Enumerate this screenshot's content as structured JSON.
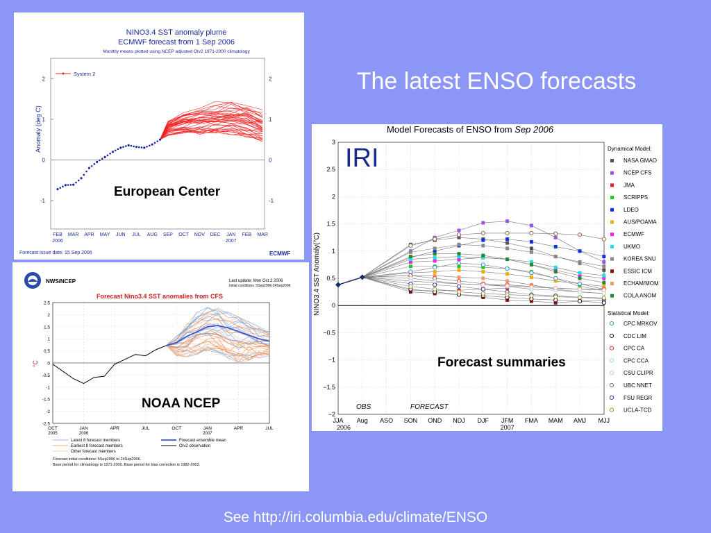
{
  "slide": {
    "title": "The latest ENSO forecasts",
    "footer": "See http://iri.columbia.edu/climate/ENSO",
    "callouts": {
      "ecmwf": "European Center",
      "ncep": "NOAA NCEP",
      "iri": "Forecast summaries"
    }
  },
  "chart_data": [
    {
      "type": "line",
      "title": "NINO3.4 SST anomaly plume",
      "subtitle": "ECMWF forecast from  1 Sep 2006",
      "note": "Monthly means plotted using NCEP adjusted OIv2 1971-2000 climatology",
      "ylabel": "Anomaly (deg C)",
      "ylim": [
        -1.7,
        2.5
      ],
      "yticks": [
        -1,
        0,
        1,
        2
      ],
      "months": [
        "FEB",
        "MAR",
        "APR",
        "MAY",
        "JUN",
        "JUL",
        "AUG",
        "SEP",
        "OCT",
        "NOV",
        "DEC",
        "JAN",
        "FEB",
        "MAR"
      ],
      "year_labels": [
        "2006",
        "2007"
      ],
      "legend": "System 2",
      "issue_date": "Forecast issue date: 15 Sep 2006",
      "logo": "ECMWF",
      "observed": {
        "x": [
          0,
          0.5,
          1,
          1.5,
          2,
          2.5,
          3,
          3.5,
          4,
          4.5,
          5,
          5.5,
          6,
          6.5
        ],
        "y": [
          -0.72,
          -0.62,
          -0.61,
          -0.45,
          -0.2,
          -0.05,
          0.07,
          0.2,
          0.3,
          0.36,
          0.32,
          0.3,
          0.38,
          0.5
        ]
      },
      "ensemble_mean": {
        "x": [
          6.5,
          7,
          8,
          9,
          10,
          11,
          12,
          13
        ],
        "y": [
          0.5,
          0.8,
          0.95,
          1.05,
          1.12,
          1.18,
          1.1,
          0.97
        ]
      },
      "spread_low": {
        "y": [
          0.5,
          0.6,
          0.65,
          0.62,
          0.6,
          0.62,
          0.55,
          0.45
        ]
      },
      "spread_high": {
        "y": [
          0.5,
          1.05,
          1.3,
          1.42,
          1.5,
          1.55,
          1.5,
          1.3
        ]
      },
      "members": 40
    },
    {
      "type": "line",
      "agency": "NWS/NCEP",
      "update": "Last update: Mon Oct  2 2006",
      "initial": "Initial conditions: 5Sep2006-24Sep2006",
      "title": "Forecast  Nino3.4 SST anomalies from CFS",
      "ylabel": "°C",
      "ylim": [
        -2.5,
        2.5
      ],
      "yticks": [
        -2.5,
        -2,
        -1.5,
        -1,
        -0.5,
        0,
        0.5,
        1,
        1.5,
        2,
        2.5
      ],
      "xticks": [
        {
          "x": 0,
          "label": "OCT",
          "year": "2005"
        },
        {
          "x": 3,
          "label": "JAN",
          "year": "2006"
        },
        {
          "x": 6,
          "label": "APR",
          "year": ""
        },
        {
          "x": 9,
          "label": "JUL",
          "year": ""
        },
        {
          "x": 12,
          "label": "OCT",
          "year": ""
        },
        {
          "x": 15,
          "label": "JAN",
          "year": "2007"
        },
        {
          "x": 18,
          "label": "APR",
          "year": ""
        },
        {
          "x": 21,
          "label": "JUL",
          "year": ""
        }
      ],
      "observed": {
        "name": "OIv2 observation",
        "x": [
          0,
          1,
          2,
          3,
          4,
          5,
          6,
          7,
          8,
          9,
          10,
          11
        ],
        "y": [
          -0.05,
          -0.35,
          -0.65,
          -0.85,
          -0.6,
          -0.55,
          -0.05,
          0.15,
          0.35,
          0.3,
          0.55,
          0.72
        ]
      },
      "ensemble_mean": {
        "name": "Forecast ensemble mean",
        "x": [
          11,
          12,
          13,
          14,
          15,
          16,
          17,
          18,
          19,
          20,
          21
        ],
        "y": [
          0.72,
          0.85,
          1.1,
          1.3,
          1.5,
          1.55,
          1.45,
          1.3,
          1.15,
          1.0,
          0.9
        ]
      },
      "spread_low": {
        "y": [
          0.72,
          0.3,
          0.25,
          0.35,
          0.5,
          0.4,
          0.15,
          0.0,
          0.1,
          0.2,
          0.3
        ]
      },
      "spread_high": {
        "y": [
          0.72,
          1.1,
          1.6,
          2.1,
          2.3,
          2.3,
          2.1,
          1.9,
          1.7,
          1.5,
          1.3
        ]
      },
      "legend": [
        "Latest 8 forecast members",
        "Forecast ensemble mean",
        "Earliest 8 forecast members",
        "OIv2 observation",
        "Other forecast members"
      ],
      "notes": [
        "Forecast initial conditions: 5Sep2006 to 24Sep2006.",
        "Base period for climatology is 1971-2000. Base period for bias correction is 1982-2003."
      ]
    },
    {
      "type": "line",
      "title": "Model Forecasts of ENSO from",
      "title_italic": "Sep 2006",
      "logo": "IRI",
      "ylabel": "NINO3.4 SST Anomaly(°C)",
      "ylim": [
        -2,
        3
      ],
      "yticks": [
        "3",
        "2.5",
        "2",
        "1.5",
        "1",
        "0.5",
        "0",
        "−0.5",
        "−1",
        "−1.5",
        "−2"
      ],
      "ytick_values": [
        3,
        2.5,
        2,
        1.5,
        1,
        0.5,
        0,
        -0.5,
        -1,
        -1.5,
        -2
      ],
      "seasons": [
        "JJA",
        "Aug",
        "ASO",
        "SON",
        "OND",
        "NDJ",
        "DJF",
        "JFM",
        "FMA",
        "MAM",
        "AMJ",
        "MJJ"
      ],
      "year_labels": [
        "2006",
        "2007"
      ],
      "obs_label": "OBS",
      "forecast_label": "FORECAST",
      "observed": {
        "x": [
          0,
          1
        ],
        "y": [
          0.38,
          0.52
        ]
      },
      "dynamical_heading": "Dynamical Model:",
      "statistical_heading": "Statistical Model:",
      "dynamical": [
        {
          "name": "NASA GMAO",
          "color": "#555555",
          "values": [
            1.12,
            1.2,
            1.25,
            1.22,
            1.15,
            1.05,
            0.9,
            0.78,
            0.65
          ]
        },
        {
          "name": "NCEP CFS",
          "color": "#9955dd",
          "values": [
            1.0,
            1.25,
            1.38,
            1.52,
            1.55,
            1.47,
            1.25,
            1.0,
            0.8
          ]
        },
        {
          "name": "JMA",
          "color": "#dd2222",
          "values": [
            0.28,
            0.27,
            0.28,
            0.3,
            0.32,
            null,
            null,
            null,
            null
          ]
        },
        {
          "name": "SCRIPPS",
          "color": "#22cc22",
          "values": [
            0.72,
            0.72,
            0.72,
            0.7,
            0.68,
            0.62,
            0.5,
            0.35,
            0.28
          ]
        },
        {
          "name": "LDEO",
          "color": "#1133dd",
          "values": [
            0.88,
            1.0,
            1.1,
            1.2,
            1.22,
            1.17,
            1.08,
            1.0,
            0.9
          ]
        },
        {
          "name": "AUS/POAMA",
          "color": "#eeaa11",
          "values": [
            0.6,
            0.62,
            0.65,
            0.62,
            0.58,
            0.52,
            0.45,
            0.4,
            0.35
          ]
        },
        {
          "name": "ECMWF",
          "color": "#ee22ee",
          "values": [
            0.8,
            0.82,
            0.85,
            0.88,
            0.85,
            0.75,
            0.65,
            0.55,
            0.5
          ]
        },
        {
          "name": "UKMO",
          "color": "#22dddd",
          "values": [
            0.85,
            0.88,
            0.9,
            0.88,
            0.85,
            0.8,
            0.7,
            0.6,
            0.55
          ]
        },
        {
          "name": "KOREA SNU",
          "color": "#888888",
          "values": [
            0.98,
            1.05,
            1.12,
            1.1,
            1.05,
            0.98,
            0.9,
            0.8,
            0.72
          ]
        },
        {
          "name": "ESSIC ICM",
          "color": "#881111",
          "values": [
            0.25,
            0.22,
            0.2,
            0.15,
            0.1,
            0.08,
            0.05,
            0.08,
            0.1
          ]
        },
        {
          "name": "ECHAM/MOM",
          "color": "#ee9966",
          "values": [
            0.55,
            0.55,
            0.52,
            0.5,
            0.45,
            0.38,
            0.3,
            0.25,
            0.22
          ]
        },
        {
          "name": "COLA ANOM",
          "color": "#228833",
          "values": [
            0.9,
            0.95,
            0.95,
            0.92,
            0.85,
            0.75,
            0.62,
            0.5,
            0.42
          ]
        }
      ],
      "statistical": [
        {
          "name": "CPC MRKOV",
          "color": "#2288dd",
          "values": [
            0.62,
            0.7,
            0.78,
            0.75,
            0.68,
            0.6,
            0.5,
            0.4,
            0.3
          ]
        },
        {
          "name": "CDC LIM",
          "color": "#000000",
          "values": [
            0.3,
            0.25,
            0.2,
            0.18,
            0.15,
            0.12,
            0.1,
            0.08,
            0.05
          ]
        },
        {
          "name": "CPC CA",
          "color": "#dd2222",
          "values": [
            0.55,
            0.5,
            0.45,
            0.4,
            0.38,
            0.35,
            0.32,
            0.3,
            0.3
          ]
        },
        {
          "name": "CPC CCA",
          "color": "#88dddd",
          "values": [
            0.5,
            0.45,
            0.4,
            0.38,
            0.35,
            0.3,
            0.28,
            0.25,
            0.22
          ]
        },
        {
          "name": "CSU CLIPR",
          "color": "#ffaaaa",
          "values": [
            0.45,
            0.42,
            0.4,
            0.38,
            0.36,
            0.34,
            0.32,
            0.3,
            0.28
          ]
        },
        {
          "name": "UBC NNET",
          "color": "#885533",
          "values": [
            1.1,
            1.22,
            1.3,
            1.33,
            1.33,
            1.33,
            1.32,
            1.3,
            1.22
          ]
        },
        {
          "name": "FSU REGR",
          "color": "#1133aa",
          "values": [
            0.4,
            0.38,
            0.35,
            0.3,
            0.25,
            0.2,
            0.18,
            0.15,
            0.12
          ]
        },
        {
          "name": "UCLA-TCD",
          "color": "#aa8811",
          "values": [
            0.35,
            0.3,
            0.25,
            0.22,
            0.2,
            0.18,
            0.16,
            0.15,
            0.14
          ]
        }
      ]
    }
  ]
}
